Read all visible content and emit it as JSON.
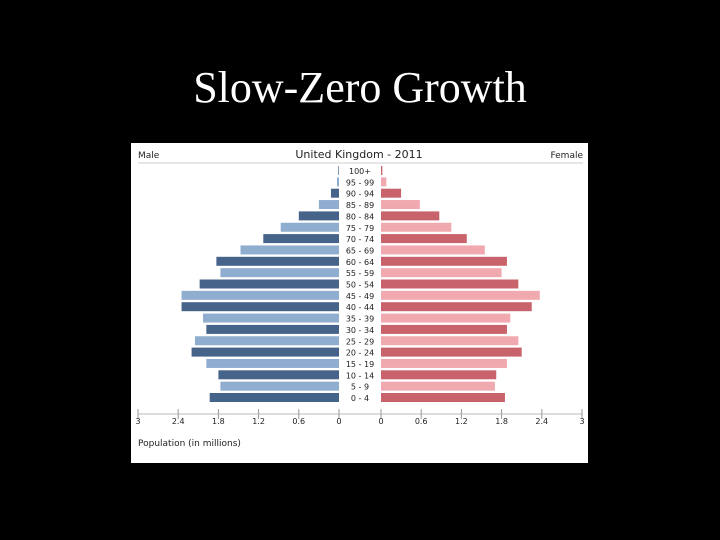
{
  "slide": {
    "title": "Slow-Zero Growth"
  },
  "chart_data": {
    "type": "bar",
    "orientation": "horizontal",
    "title": "United Kingdom - 2011",
    "left_label": "Male",
    "right_label": "Female",
    "xlabel": "Population (in millions)",
    "xlim": [
      -3,
      3
    ],
    "x_ticks": [
      "3",
      "2.4",
      "1.8",
      "1.2",
      "0.6",
      "0",
      "0",
      "0.6",
      "1.2",
      "1.8",
      "2.4",
      "3"
    ],
    "categories": [
      "100+",
      "95 - 99",
      "90 - 94",
      "85 - 89",
      "80 - 84",
      "75 - 79",
      "70 - 74",
      "65 - 69",
      "60 - 64",
      "55 - 59",
      "50 - 54",
      "45 - 49",
      "40 - 44",
      "35 - 39",
      "30 - 34",
      "25 - 29",
      "20 - 24",
      "15 - 19",
      "10 - 14",
      "5 - 9",
      "0 - 4"
    ],
    "series": [
      {
        "name": "Male",
        "values": [
          0.01,
          0.03,
          0.12,
          0.3,
          0.6,
          0.87,
          1.13,
          1.47,
          1.83,
          1.77,
          2.08,
          2.35,
          2.35,
          2.03,
          1.98,
          2.15,
          2.2,
          1.98,
          1.8,
          1.77,
          1.93
        ],
        "colors": [
          "#46648a",
          "#8fadcf"
        ]
      },
      {
        "name": "Female",
        "values": [
          0.02,
          0.08,
          0.3,
          0.58,
          0.87,
          1.05,
          1.28,
          1.55,
          1.88,
          1.8,
          2.05,
          2.37,
          2.25,
          1.93,
          1.88,
          2.05,
          2.1,
          1.88,
          1.72,
          1.7,
          1.85
        ],
        "colors": [
          "#c9636b",
          "#f1a9b0"
        ]
      }
    ],
    "grid": false,
    "legend": "none"
  }
}
